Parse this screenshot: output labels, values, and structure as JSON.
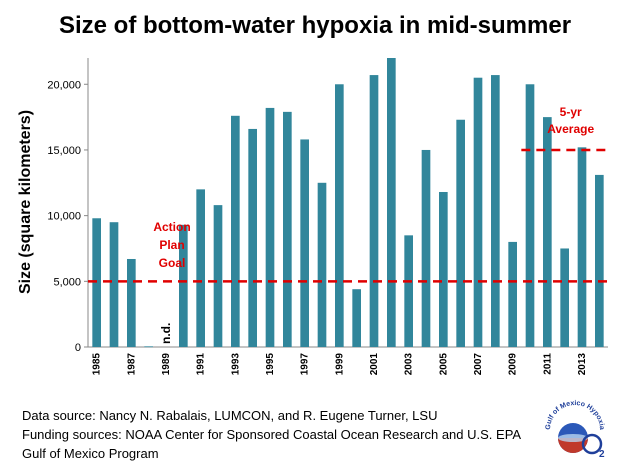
{
  "chart_data": {
    "type": "bar",
    "title": "Size of bottom-water hypoxia in mid-summer",
    "ylabel": "Size (square kilometers)",
    "xlabel": "",
    "ylim": [
      0,
      22000
    ],
    "yticks": [
      0,
      5000,
      10000,
      15000,
      20000
    ],
    "ytick_labels": [
      "0",
      "5,000",
      "10,000",
      "15,000",
      "20,000"
    ],
    "xtick_labels": [
      "1985",
      "1987",
      "1989",
      "1991",
      "1993",
      "1995",
      "1997",
      "1999",
      "2001",
      "2003",
      "2005",
      "2007",
      "2009",
      "2011",
      "2013"
    ],
    "categories": [
      "1985",
      "1986",
      "1987",
      "1988",
      "1989",
      "1990",
      "1991",
      "1992",
      "1993",
      "1994",
      "1995",
      "1996",
      "1997",
      "1998",
      "1999",
      "2000",
      "2001",
      "2002",
      "2003",
      "2004",
      "2005",
      "2006",
      "2007",
      "2008",
      "2009",
      "2010",
      "2011",
      "2012",
      "2013",
      "2014"
    ],
    "values": [
      9800,
      9500,
      6700,
      50,
      null,
      9300,
      12000,
      10800,
      17600,
      16600,
      18200,
      17900,
      15800,
      12500,
      20000,
      4400,
      20700,
      22000,
      8500,
      15000,
      11800,
      17300,
      20500,
      20700,
      8000,
      20000,
      17500,
      7500,
      15200,
      13100
    ],
    "bar_color": "#31869b",
    "grid": false,
    "reference_lines": [
      {
        "value": 5000,
        "from": "1985",
        "to": "2014",
        "color": "#e00000",
        "style": "dashed"
      },
      {
        "value": 15000,
        "from": "2010",
        "to": "2014",
        "color": "#e00000",
        "style": "dashed"
      }
    ],
    "annotations": {
      "action_plan": [
        "Action",
        "Plan",
        "Goal"
      ],
      "five_year": [
        "5-yr",
        "Average"
      ],
      "no_data": "n.d."
    }
  },
  "footnotes": {
    "line1": "Data source: Nancy N. Rabalais, LUMCON, and R. Eugene Turner, LSU",
    "line2": "Funding sources: NOAA Center for Sponsored Coastal Ocean Research and U.S. EPA Gulf of Mexico Program"
  },
  "logo": {
    "arc_text": "Gulf of Mexico Hypoxia",
    "icon": "o2-globe-logo"
  }
}
